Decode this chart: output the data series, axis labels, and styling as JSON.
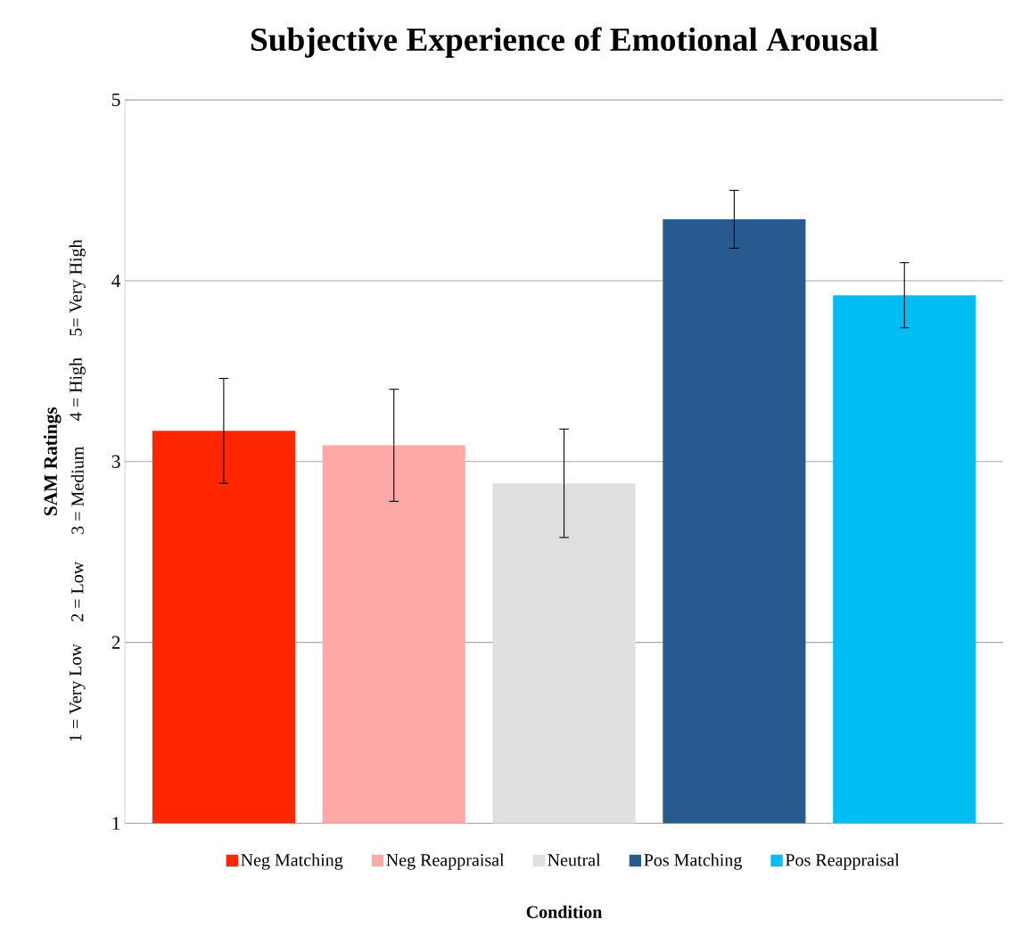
{
  "chart_data": {
    "type": "bar",
    "title": "Subjective Experience of Emotional Arousal",
    "xlabel": "Condition",
    "ylabel": "SAM Ratings",
    "annotations": [
      "1 = Very Low",
      "2 = Low",
      "3 = Medium",
      "4 = High",
      "5= Very High"
    ],
    "categories": [
      null
    ],
    "series": [
      {
        "name": "Neg Matching",
        "color": "#ff2600",
        "values": [
          3.17
        ],
        "errors": [
          0.29
        ]
      },
      {
        "name": "Neg Reappraisal",
        "color": "#fea9a7",
        "values": [
          3.09
        ],
        "errors": [
          0.31
        ]
      },
      {
        "name": "Neutral",
        "color": "#dfdfdf",
        "values": [
          2.88
        ],
        "errors": [
          0.3
        ]
      },
      {
        "name": "Pos Matching",
        "color": "#275a8f",
        "values": [
          4.34
        ],
        "errors": [
          0.16
        ]
      },
      {
        "name": "Pos Reappraisal",
        "color": "#00bef2",
        "values": [
          3.92
        ],
        "errors": [
          0.18
        ]
      }
    ],
    "ylim": [
      1,
      5
    ],
    "yticks": [
      1,
      2,
      3,
      4,
      5
    ],
    "grid": "y",
    "legend": "bottom"
  }
}
